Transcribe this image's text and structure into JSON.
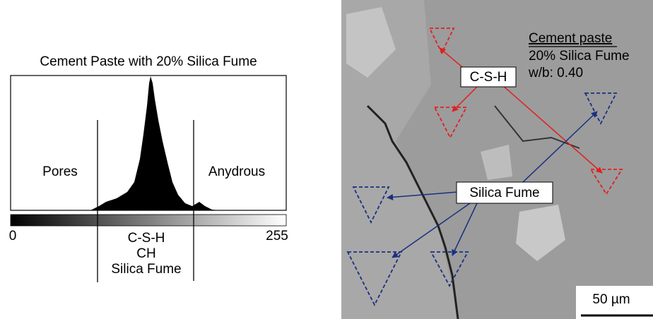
{
  "histogram": {
    "title": "Cement Paste with 20% Silica Fume",
    "region_labels": [
      "Pores",
      "Anydrous"
    ],
    "phase_labels": [
      "C-S-H",
      "CH",
      "Silica Fume"
    ],
    "scale_min": 0,
    "scale_max": 255
  },
  "micrograph": {
    "legend": [
      "Cement paste",
      "20% Silica Fume",
      "w/b: 0.40"
    ],
    "callouts": [
      "C-S-H",
      "Silica Fume"
    ],
    "scale_bar": "50 µm"
  }
}
